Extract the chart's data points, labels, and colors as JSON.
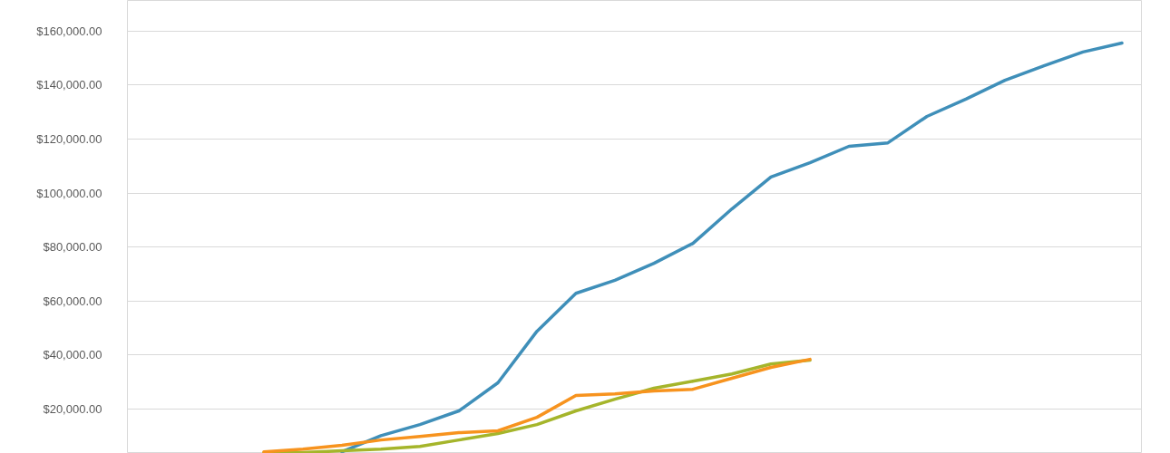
{
  "chart_data": {
    "type": "line",
    "categories": [
      null,
      null,
      null,
      null,
      null,
      null,
      null,
      null,
      null,
      null,
      null,
      null,
      null,
      null,
      null,
      null,
      null,
      null,
      null,
      null,
      null,
      null,
      null,
      null,
      null,
      null
    ],
    "series": [
      {
        "color": "#3f8fb9",
        "values": [
          null,
          null,
          null,
          null,
          null,
          4000,
          10000,
          14100,
          19200,
          29600,
          48700,
          62800,
          67600,
          73900,
          81300,
          94100,
          105900,
          111200,
          117300,
          118600,
          128400,
          134800,
          141800,
          147200,
          152300,
          155600
        ]
      },
      {
        "color": "#a5b52b",
        "values": [
          null,
          null,
          null,
          3700,
          3700,
          4400,
          5000,
          6000,
          8400,
          10800,
          14100,
          19200,
          23500,
          27600,
          30200,
          32900,
          36600,
          38000,
          null,
          null,
          null,
          null,
          null,
          null,
          null,
          null
        ]
      },
      {
        "color": "#f7931e",
        "values": [
          null,
          null,
          null,
          4000,
          5000,
          6400,
          8400,
          9700,
          11100,
          11800,
          16800,
          24900,
          25500,
          26600,
          27200,
          31300,
          35300,
          38300,
          null,
          null,
          null,
          null,
          null,
          null,
          null,
          null
        ]
      }
    ],
    "ylim": [
      3400,
      171400
    ],
    "yticks": [
      {
        "value": 20000,
        "label": "$20,000.00"
      },
      {
        "value": 40000,
        "label": "$40,000.00"
      },
      {
        "value": 60000,
        "label": "$60,000.00"
      },
      {
        "value": 80000,
        "label": "$80,000.00"
      },
      {
        "value": 100000,
        "label": "$100,000.00"
      },
      {
        "value": 120000,
        "label": "$120,000.00"
      },
      {
        "value": 140000,
        "label": "$140,000.00"
      },
      {
        "value": 160000,
        "label": "$160,000.00"
      }
    ],
    "grid": "y",
    "tick_labels": "y",
    "line_style": "solid"
  }
}
